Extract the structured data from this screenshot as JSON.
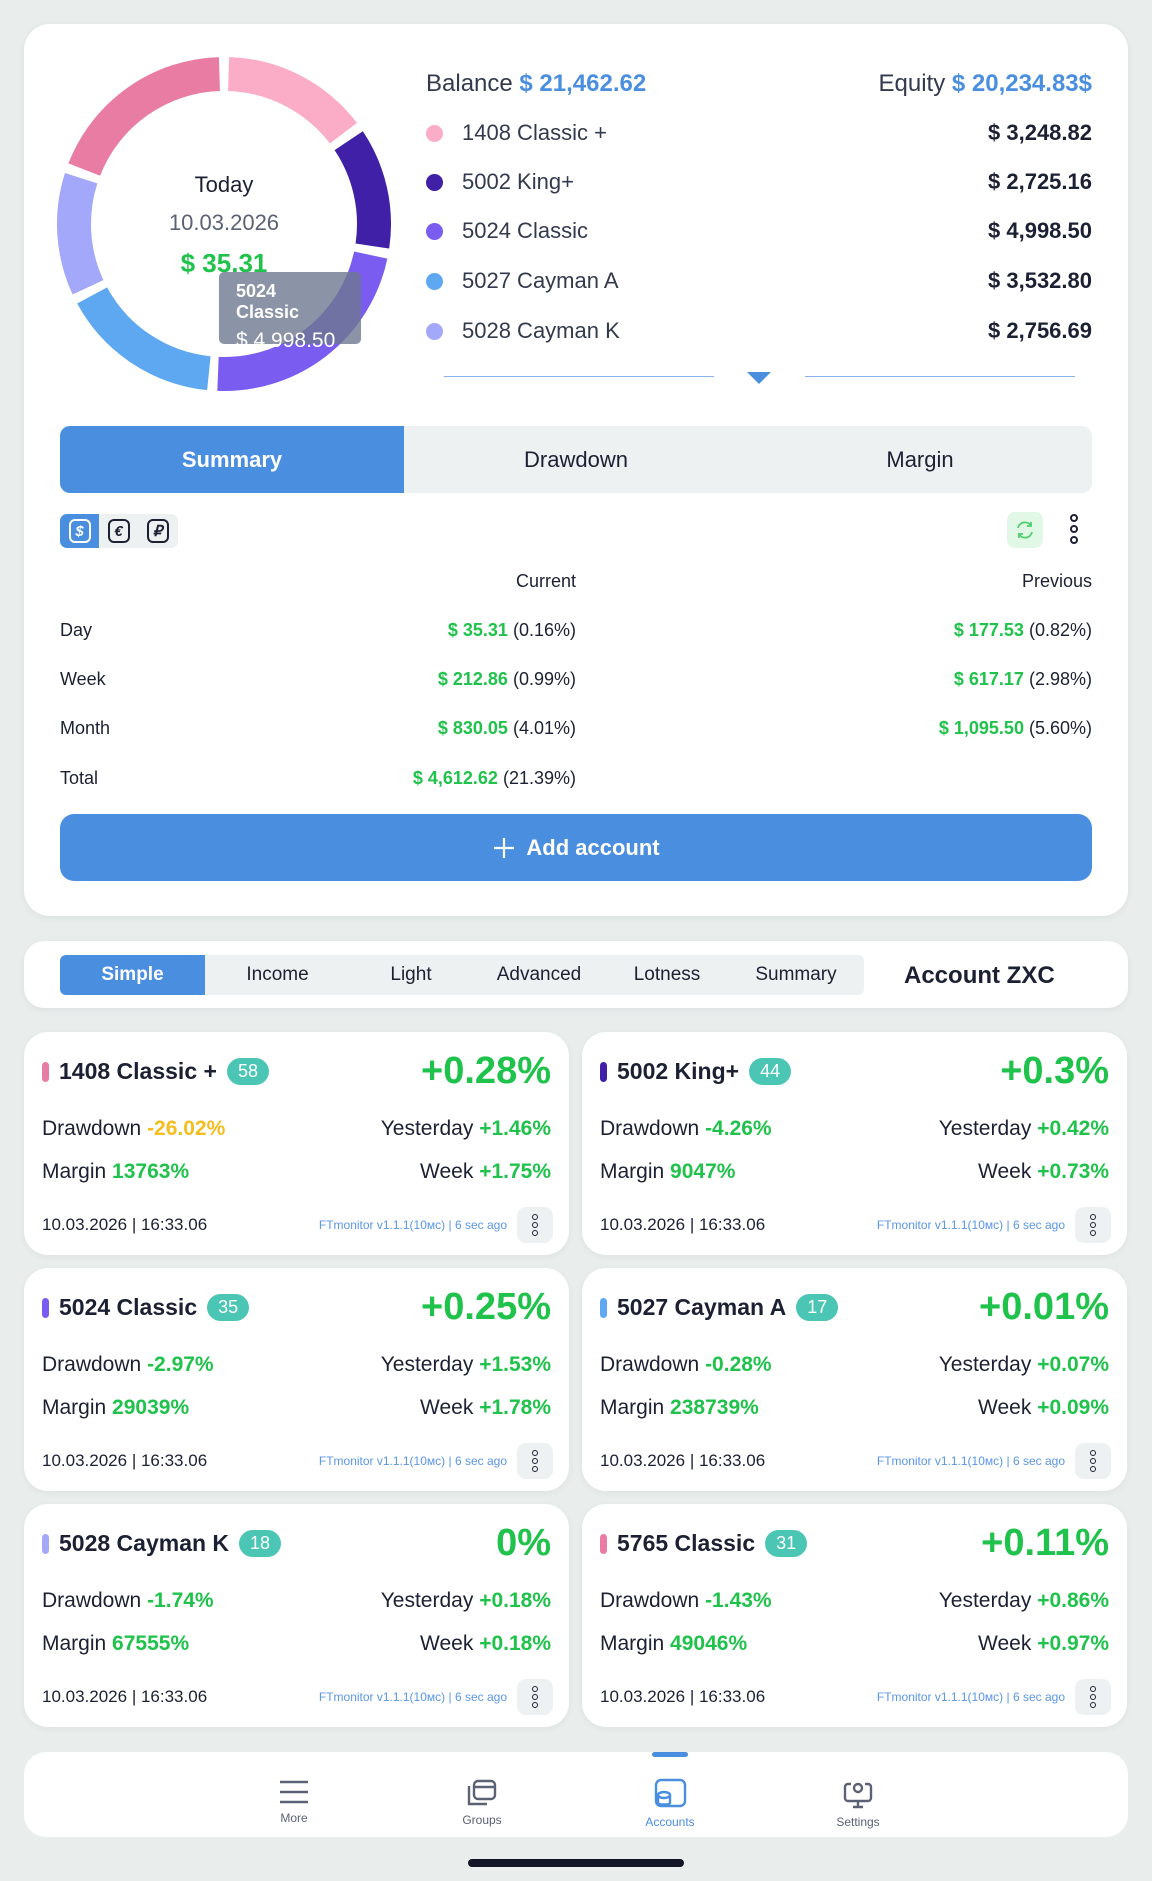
{
  "overview": {
    "center": {
      "label": "Today",
      "date": "10.03.2026",
      "profit": "$ 35.31"
    },
    "tooltip": {
      "name": "5024 Classic",
      "value": "$ 4,998.50"
    },
    "balance_label": "Balance",
    "balance": "$ 21,462.62",
    "equity_label": "Equity",
    "equity": "$ 20,234.83$",
    "accounts": [
      {
        "name": "1408 Classic +",
        "value": "$ 3,248.82",
        "amount": 3248.82,
        "color": "#fbacc6"
      },
      {
        "name": "5002 King+",
        "value": "$ 2,725.16",
        "amount": 2725.16,
        "color": "#3f20a6"
      },
      {
        "name": "5024 Classic",
        "value": "$ 4,998.50",
        "amount": 4998.5,
        "color": "#7b5cf0"
      },
      {
        "name": "5027 Cayman A",
        "value": "$ 3,532.80",
        "amount": 3532.8,
        "color": "#5ea8f2"
      },
      {
        "name": "5028 Cayman K",
        "value": "$ 2,756.69",
        "amount": 2756.69,
        "color": "#a3a8fb"
      }
    ],
    "remainder_color": "#e97ca3"
  },
  "tabs": [
    {
      "label": "Summary",
      "active": true
    },
    {
      "label": "Drawdown"
    },
    {
      "label": "Margin"
    }
  ],
  "currencies": [
    {
      "symbol": "$",
      "active": true
    },
    {
      "symbol": "€"
    },
    {
      "symbol": "₽"
    }
  ],
  "table": {
    "header": {
      "current": "Current",
      "previous": "Previous"
    },
    "rows": [
      {
        "label": "Day",
        "current": "$ 35.31",
        "current_pct": "(0.16%)",
        "previous": "$ 177.53",
        "previous_pct": "(0.82%)"
      },
      {
        "label": "Week",
        "current": "$ 212.86",
        "current_pct": "(0.99%)",
        "previous": "$ 617.17",
        "previous_pct": "(2.98%)"
      },
      {
        "label": "Month",
        "current": "$ 830.05",
        "current_pct": "(4.01%)",
        "previous": "$ 1,095.50",
        "previous_pct": "(5.60%)"
      },
      {
        "label": "Total",
        "current": "$ 4,612.62",
        "current_pct": "(21.39%)",
        "previous": "",
        "previous_pct": ""
      }
    ]
  },
  "add_account": "Add account",
  "view_tabs": [
    "Simple",
    "Income",
    "Light",
    "Advanced",
    "Lotness",
    "Summary"
  ],
  "group_title": "Account ZXC",
  "cards": [
    {
      "name": "1408 Classic +",
      "badge": "58",
      "pct": "+0.28%",
      "drawdown": "-26.02%",
      "yesterday": "+1.46%",
      "margin": "13763%",
      "week": "+1.75%",
      "color": "#e97ca3",
      "warn": true
    },
    {
      "name": "5002 King+",
      "badge": "44",
      "pct": "+0.3%",
      "drawdown": "-4.26%",
      "yesterday": "+0.42%",
      "margin": "9047%",
      "week": "+0.73%",
      "color": "#3f20a6"
    },
    {
      "name": "5024 Classic",
      "badge": "35",
      "pct": "+0.25%",
      "drawdown": "-2.97%",
      "yesterday": "+1.53%",
      "margin": "29039%",
      "week": "+1.78%",
      "color": "#7b5cf0"
    },
    {
      "name": "5027 Cayman A",
      "badge": "17",
      "pct": "+0.01%",
      "drawdown": "-0.28%",
      "yesterday": "+0.07%",
      "margin": "238739%",
      "week": "+0.09%",
      "color": "#5ea8f2"
    },
    {
      "name": "5028 Cayman K",
      "badge": "18",
      "pct": "0%",
      "drawdown": "-1.74%",
      "yesterday": "+0.18%",
      "margin": "67555%",
      "week": "+0.18%",
      "color": "#a3a8fb"
    },
    {
      "name": "5765 Classic",
      "badge": "31",
      "pct": "+0.11%",
      "drawdown": "-1.43%",
      "yesterday": "+0.86%",
      "margin": "49046%",
      "week": "+0.97%",
      "color": "#e97ca3"
    }
  ],
  "card_labels": {
    "drawdown": "Drawdown",
    "yesterday": "Yesterday",
    "margin": "Margin",
    "week": "Week",
    "date": "10.03.2026",
    "time": "16:33.06",
    "version": "FTmonitor v1.1.1(10мс)",
    "ago": "6 sec ago"
  },
  "nav": [
    {
      "label": "More",
      "icon": "menu-icon"
    },
    {
      "label": "Groups",
      "icon": "folders-icon"
    },
    {
      "label": "Accounts",
      "icon": "accounts-icon",
      "active": true
    },
    {
      "label": "Settings",
      "icon": "settings-icon"
    }
  ]
}
